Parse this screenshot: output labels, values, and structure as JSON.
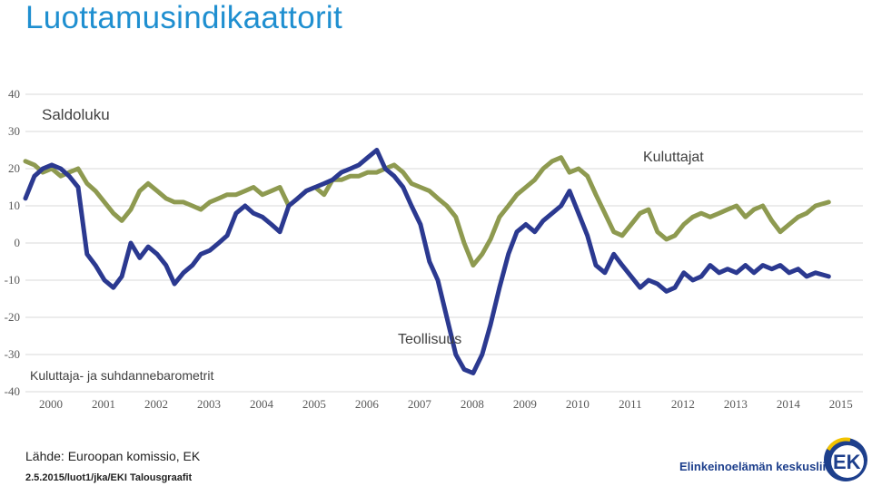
{
  "header": {
    "title": "Luottamusindikaattorit"
  },
  "footer": {
    "source": "Lähde: Euroopan komissio, EK",
    "date": "2.5.2015/luot1/jka/EKI Talousgraafit",
    "org": "Elinkeinoelämän keskusliitto",
    "logo_text": "EK"
  },
  "colors": {
    "consumers": "#8e9a50",
    "industry": "#2b3990",
    "title": "#1f8fd0",
    "logo_blue": "#1d3f8c",
    "logo_yellow": "#f2c300"
  },
  "chart_data": {
    "type": "line",
    "title": "",
    "ylabel": "Saldoluku",
    "subtitle": "Kuluttaja- ja suhdannebarometrit",
    "ylim": [
      -40,
      40
    ],
    "yticks": [
      40,
      30,
      20,
      10,
      0,
      -10,
      -20,
      -30,
      -40
    ],
    "xlim": [
      2000,
      2015.9
    ],
    "xticks": [
      "2000",
      "2001",
      "2002",
      "2003",
      "2004",
      "2005",
      "2006",
      "2007",
      "2008",
      "2009",
      "2010",
      "2011",
      "2012",
      "2013",
      "2014",
      "2015"
    ],
    "grid": "horizontal",
    "series": [
      {
        "name": "Kuluttajat",
        "color": "#8e9a50",
        "x": [
          2000.0,
          2000.17,
          2000.33,
          2000.5,
          2000.67,
          2000.83,
          2001.0,
          2001.17,
          2001.33,
          2001.5,
          2001.67,
          2001.83,
          2002.0,
          2002.17,
          2002.33,
          2002.5,
          2002.67,
          2002.83,
          2003.0,
          2003.17,
          2003.33,
          2003.5,
          2003.67,
          2003.83,
          2004.0,
          2004.17,
          2004.33,
          2004.5,
          2004.67,
          2004.83,
          2005.0,
          2005.17,
          2005.33,
          2005.5,
          2005.67,
          2005.83,
          2006.0,
          2006.17,
          2006.33,
          2006.5,
          2006.67,
          2006.83,
          2007.0,
          2007.17,
          2007.33,
          2007.5,
          2007.67,
          2007.83,
          2008.0,
          2008.17,
          2008.33,
          2008.5,
          2008.67,
          2008.83,
          2009.0,
          2009.17,
          2009.33,
          2009.5,
          2009.67,
          2009.83,
          2010.0,
          2010.17,
          2010.33,
          2010.5,
          2010.67,
          2010.83,
          2011.0,
          2011.17,
          2011.33,
          2011.5,
          2011.67,
          2011.83,
          2012.0,
          2012.17,
          2012.33,
          2012.5,
          2012.67,
          2012.83,
          2013.0,
          2013.17,
          2013.33,
          2013.5,
          2013.67,
          2013.83,
          2014.0,
          2014.17,
          2014.33,
          2014.5,
          2014.67,
          2014.83,
          2015.0,
          2015.25
        ],
        "values": [
          22,
          21,
          19,
          20,
          18,
          19,
          20,
          16,
          14,
          11,
          8,
          6,
          9,
          14,
          16,
          14,
          12,
          11,
          11,
          10,
          9,
          11,
          12,
          13,
          13,
          14,
          15,
          13,
          14,
          15,
          10,
          12,
          14,
          15,
          13,
          17,
          17,
          18,
          18,
          19,
          19,
          20,
          21,
          19,
          16,
          15,
          14,
          12,
          10,
          7,
          0,
          -6,
          -3,
          1,
          7,
          10,
          13,
          15,
          17,
          20,
          22,
          23,
          19,
          20,
          18,
          13,
          8,
          3,
          2,
          5,
          8,
          9,
          3,
          1,
          2,
          5,
          7,
          8,
          7,
          8,
          9,
          10,
          7,
          9,
          10,
          6,
          3,
          5,
          7,
          8,
          10,
          11
        ]
      },
      {
        "name": "Teollisuus",
        "color": "#2b3990",
        "x": [
          2000.0,
          2000.17,
          2000.33,
          2000.5,
          2000.67,
          2000.83,
          2001.0,
          2001.17,
          2001.33,
          2001.5,
          2001.67,
          2001.83,
          2002.0,
          2002.17,
          2002.33,
          2002.5,
          2002.67,
          2002.83,
          2003.0,
          2003.17,
          2003.33,
          2003.5,
          2003.67,
          2003.83,
          2004.0,
          2004.17,
          2004.33,
          2004.5,
          2004.67,
          2004.83,
          2005.0,
          2005.17,
          2005.33,
          2005.5,
          2005.67,
          2005.83,
          2006.0,
          2006.17,
          2006.33,
          2006.5,
          2006.67,
          2006.83,
          2007.0,
          2007.17,
          2007.33,
          2007.5,
          2007.67,
          2007.83,
          2008.0,
          2008.17,
          2008.33,
          2008.5,
          2008.67,
          2008.83,
          2009.0,
          2009.17,
          2009.33,
          2009.5,
          2009.67,
          2009.83,
          2010.0,
          2010.17,
          2010.33,
          2010.5,
          2010.67,
          2010.83,
          2011.0,
          2011.17,
          2011.33,
          2011.5,
          2011.67,
          2011.83,
          2012.0,
          2012.17,
          2012.33,
          2012.5,
          2012.67,
          2012.83,
          2013.0,
          2013.17,
          2013.33,
          2013.5,
          2013.67,
          2013.83,
          2014.0,
          2014.17,
          2014.33,
          2014.5,
          2014.67,
          2014.83,
          2015.0,
          2015.25
        ],
        "values": [
          12,
          18,
          20,
          21,
          20,
          18,
          15,
          -3,
          -6,
          -10,
          -12,
          -9,
          0,
          -4,
          -1,
          -3,
          -6,
          -11,
          -8,
          -6,
          -3,
          -2,
          0,
          2,
          8,
          10,
          8,
          7,
          5,
          3,
          10,
          12,
          14,
          15,
          16,
          17,
          19,
          20,
          21,
          23,
          25,
          20,
          18,
          15,
          10,
          5,
          -5,
          -10,
          -20,
          -30,
          -34,
          -35,
          -30,
          -22,
          -12,
          -3,
          3,
          5,
          3,
          6,
          8,
          10,
          14,
          8,
          2,
          -6,
          -8,
          -3,
          -6,
          -9,
          -12,
          -10,
          -11,
          -13,
          -12,
          -8,
          -10,
          -9,
          -6,
          -8,
          -7,
          -8,
          -6,
          -8,
          -6,
          -7,
          -6,
          -8,
          -7,
          -9,
          -8,
          -9
        ]
      }
    ],
    "annotations": {
      "kuluttajat": "Kuluttajat",
      "teollisuus": "Teollisuus"
    }
  }
}
